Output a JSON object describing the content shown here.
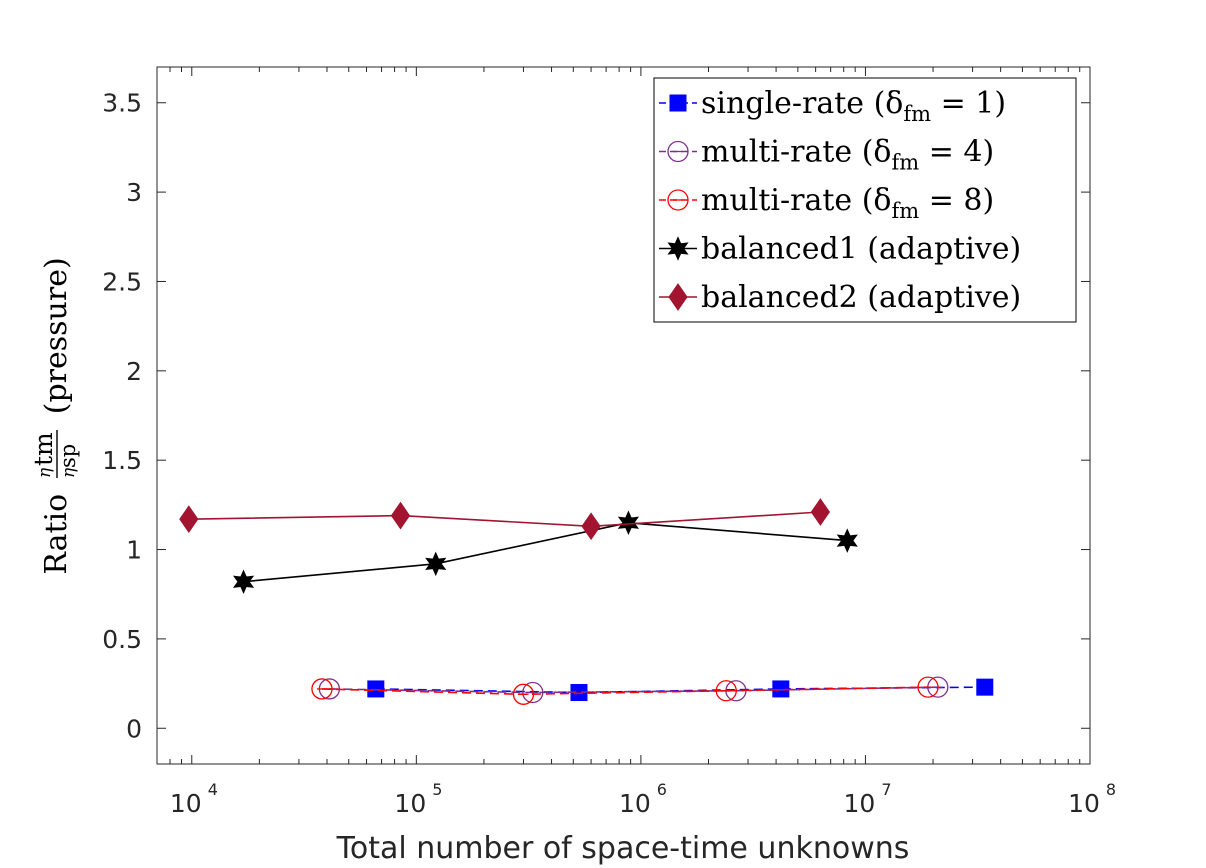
{
  "chart_data": {
    "type": "line",
    "xscale": "log",
    "xlim": [
      7000,
      100000000
    ],
    "ylim": [
      -0.2,
      3.7
    ],
    "xlabel": "Total number of space-time unknowns",
    "ylabel": {
      "prefix": "Ratio",
      "numerator": "η",
      "numerator_sub": "tm",
      "denominator": "η",
      "denominator_sub": "sp",
      "suffix": "(pressure)"
    },
    "x_ticks": [
      {
        "value": 10000,
        "base": "10",
        "exp": "4"
      },
      {
        "value": 100000,
        "base": "10",
        "exp": "5"
      },
      {
        "value": 1000000,
        "base": "10",
        "exp": "6"
      },
      {
        "value": 10000000,
        "base": "10",
        "exp": "7"
      },
      {
        "value": 100000000,
        "base": "10",
        "exp": "8"
      }
    ],
    "y_ticks": [
      {
        "value": 0,
        "label": "0"
      },
      {
        "value": 0.5,
        "label": "0.5"
      },
      {
        "value": 1,
        "label": "1"
      },
      {
        "value": 1.5,
        "label": "1.5"
      },
      {
        "value": 2,
        "label": "2"
      },
      {
        "value": 2.5,
        "label": "2.5"
      },
      {
        "value": 3,
        "label": "3"
      },
      {
        "value": 3.5,
        "label": "3.5"
      }
    ],
    "legend_location": "top-right",
    "series": [
      {
        "name": "single-rate",
        "legend_parts": {
          "main": "single-rate (δ",
          "sub": "fm",
          "tail": " = 1)"
        },
        "color": "#0000ff",
        "marker": "square",
        "line_style": "dashed",
        "x": [
          66000,
          530000,
          4200000,
          34000000
        ],
        "y": [
          0.22,
          0.2,
          0.22,
          0.23
        ]
      },
      {
        "name": "multi-rate delta 4",
        "legend_parts": {
          "main": "multi-rate (δ",
          "sub": "fm",
          "tail": " = 4)"
        },
        "color": "#7e2f8e",
        "marker": "open-circle",
        "line_style": "dashed",
        "x": [
          41000,
          330000,
          2650000,
          21000000
        ],
        "y": [
          0.22,
          0.2,
          0.21,
          0.23
        ]
      },
      {
        "name": "multi-rate delta 8",
        "legend_parts": {
          "main": "multi-rate (δ",
          "sub": "fm",
          "tail": " = 8)"
        },
        "color": "#ff0000",
        "marker": "open-circle",
        "line_style": "dashed",
        "x": [
          38000,
          300000,
          2400000,
          19000000
        ],
        "y": [
          0.22,
          0.19,
          0.21,
          0.23
        ]
      },
      {
        "name": "balanced1",
        "legend_parts": {
          "main": "balanced1 (adaptive)",
          "sub": "",
          "tail": ""
        },
        "color": "#000000",
        "marker": "hexagram",
        "line_style": "solid",
        "x": [
          17000,
          122000,
          880000,
          8300000
        ],
        "y": [
          0.82,
          0.92,
          1.15,
          1.05
        ]
      },
      {
        "name": "balanced2",
        "legend_parts": {
          "main": "balanced2 (adaptive)",
          "sub": "",
          "tail": ""
        },
        "color": "#a2142f",
        "marker": "diamond",
        "line_style": "solid",
        "x": [
          9700,
          85000,
          600000,
          6300000
        ],
        "y": [
          1.17,
          1.19,
          1.13,
          1.21
        ]
      }
    ]
  }
}
